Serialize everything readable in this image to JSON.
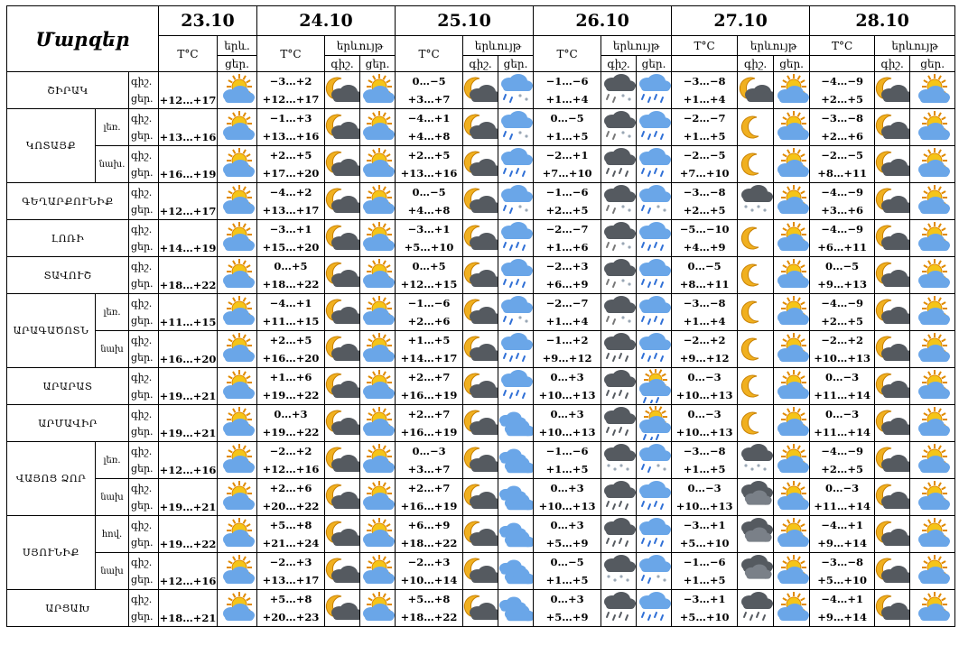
{
  "title": "Մարզեր",
  "dates": [
    "23.10",
    "24.10",
    "25.10",
    "26.10",
    "27.10",
    "28.10"
  ],
  "headers": {
    "temp": "T°C",
    "phen": "երևույթ",
    "phen_short": "երև.",
    "night": "գիշ.",
    "day": "ցեր."
  },
  "rows": [
    {
      "region": "ՇԻՐԱԿ",
      "sub": "",
      "tod": [
        "գիշ.",
        "ցեր."
      ],
      "d1_temp": "+12…+17",
      "d1_icon": "sun-cloud",
      "days": [
        {
          "night_temp": "−3…+2",
          "day_temp": "+12…+17",
          "night_icon": "moon-cloud",
          "day_icon": "sun-cloud"
        },
        {
          "night_temp": "0…−5",
          "day_temp": "+3…+7",
          "night_icon": "moon-cloud",
          "day_icon": "cloud-sleet"
        },
        {
          "night_temp": "−1…−6",
          "day_temp": "+1…+4",
          "night_icon": "dark-cloud-sleet",
          "day_icon": "cloud-rain"
        },
        {
          "night_temp": "−3…−8",
          "day_temp": "+1…+4",
          "night_icon": "moon-cloud",
          "day_icon": "sun-cloud"
        },
        {
          "night_temp": "−4…−9",
          "day_temp": "+2…+5",
          "night_icon": "moon-cloud",
          "day_icon": "sun-cloud"
        }
      ]
    },
    {
      "region": "ԿՈՏԱՅՔ",
      "sub": "լեռ.",
      "tod": [
        "գիշ.",
        "ցեր."
      ],
      "d1_temp": "+13…+16",
      "d1_icon": "sun-cloud",
      "days": [
        {
          "night_temp": "−1…+3",
          "day_temp": "+13…+16",
          "night_icon": "moon-cloud",
          "day_icon": "sun-cloud"
        },
        {
          "night_temp": "−4…+1",
          "day_temp": "+4…+8",
          "night_icon": "moon-cloud",
          "day_icon": "cloud-sleet"
        },
        {
          "night_temp": "0…−5",
          "day_temp": "+1…+5",
          "night_icon": "dark-cloud-sleet",
          "day_icon": "cloud-rain"
        },
        {
          "night_temp": "−2…−7",
          "day_temp": "+1…+5",
          "night_icon": "moon",
          "day_icon": "sun-cloud"
        },
        {
          "night_temp": "−3…−8",
          "day_temp": "+2…+6",
          "night_icon": "moon-cloud",
          "day_icon": "sun-cloud"
        }
      ]
    },
    {
      "region": "",
      "sub": "նախ.",
      "tod": [
        "գիշ.",
        "ցեր."
      ],
      "d1_temp": "+16…+19",
      "d1_icon": "sun-cloud",
      "days": [
        {
          "night_temp": "+2…+5",
          "day_temp": "+17…+20",
          "night_icon": "moon-cloud",
          "day_icon": "sun-cloud"
        },
        {
          "night_temp": "+2…+5",
          "day_temp": "+13…+16",
          "night_icon": "moon-cloud",
          "day_icon": "cloud-rain"
        },
        {
          "night_temp": "−2…+1",
          "day_temp": "+7…+10",
          "night_icon": "dark-cloud-rain",
          "day_icon": "cloud-rain"
        },
        {
          "night_temp": "−2…−5",
          "day_temp": "+7…+10",
          "night_icon": "moon",
          "day_icon": "sun-cloud"
        },
        {
          "night_temp": "−2…−5",
          "day_temp": "+8…+11",
          "night_icon": "moon-cloud",
          "day_icon": "sun-cloud"
        }
      ]
    },
    {
      "region": "ԳԵՂԱՐՔՈՒՆԻՔ",
      "sub": "",
      "tod": [
        "գիշ.",
        "ցեր."
      ],
      "d1_temp": "+12…+17",
      "d1_icon": "sun-cloud",
      "days": [
        {
          "night_temp": "−4…+2",
          "day_temp": "+13…+17",
          "night_icon": "moon-cloud",
          "day_icon": "sun-cloud"
        },
        {
          "night_temp": "0…−5",
          "day_temp": "+4…+8",
          "night_icon": "moon-cloud",
          "day_icon": "cloud-sleet"
        },
        {
          "night_temp": "−1…−6",
          "day_temp": "+2…+5",
          "night_icon": "dark-cloud-sleet",
          "day_icon": "cloud-sleet"
        },
        {
          "night_temp": "−3…−8",
          "day_temp": "+2…+5",
          "night_icon": "cloud-snow",
          "day_icon": "sun-cloud"
        },
        {
          "night_temp": "−4…−9",
          "day_temp": "+3…+6",
          "night_icon": "moon-cloud",
          "day_icon": "sun-cloud"
        }
      ]
    },
    {
      "region": "ԼՈՌԻ",
      "sub": "",
      "tod": [
        "գիշ.",
        "ցեր."
      ],
      "d1_temp": "+14…+19",
      "d1_icon": "sun-cloud",
      "days": [
        {
          "night_temp": "−3…+1",
          "day_temp": "+15…+20",
          "night_icon": "moon-cloud",
          "day_icon": "sun-cloud"
        },
        {
          "night_temp": "−3…+1",
          "day_temp": "+5…+10",
          "night_icon": "moon-cloud",
          "day_icon": "cloud-rain"
        },
        {
          "night_temp": "−2…−7",
          "day_temp": "+1…+6",
          "night_icon": "dark-cloud-sleet",
          "day_icon": "cloud-rain"
        },
        {
          "night_temp": "−5…−10",
          "day_temp": "+4…+9",
          "night_icon": "moon",
          "day_icon": "sun-cloud"
        },
        {
          "night_temp": "−4…−9",
          "day_temp": "+6…+11",
          "night_icon": "moon-cloud",
          "day_icon": "sun-cloud"
        }
      ]
    },
    {
      "region": "ՏԱՎՈՒՇ",
      "sub": "",
      "tod": [
        "գիշ.",
        "ցեր."
      ],
      "d1_temp": "+18…+22",
      "d1_icon": "sun-cloud",
      "days": [
        {
          "night_temp": "0…+5",
          "day_temp": "+18…+22",
          "night_icon": "moon-cloud",
          "day_icon": "sun-cloud"
        },
        {
          "night_temp": "0…+5",
          "day_temp": "+12…+15",
          "night_icon": "moon-cloud",
          "day_icon": "cloud-rain"
        },
        {
          "night_temp": "−2…+3",
          "day_temp": "+6…+9",
          "night_icon": "dark-cloud-sleet",
          "day_icon": "cloud-rain"
        },
        {
          "night_temp": "0…−5",
          "day_temp": "+8…+11",
          "night_icon": "moon",
          "day_icon": "sun-cloud"
        },
        {
          "night_temp": "0…−5",
          "day_temp": "+9…+13",
          "night_icon": "moon-cloud",
          "day_icon": "sun-cloud"
        }
      ]
    },
    {
      "region": "ԱՐԱԳԱԾՈՏՆ",
      "sub": "լեռ.",
      "tod": [
        "գիշ.",
        "ցեր."
      ],
      "d1_temp": "+11…+15",
      "d1_icon": "sun-cloud",
      "days": [
        {
          "night_temp": "−4…+1",
          "day_temp": "+11…+15",
          "night_icon": "moon-cloud",
          "day_icon": "sun-cloud"
        },
        {
          "night_temp": "−1…−6",
          "day_temp": "+2…+6",
          "night_icon": "moon-cloud",
          "day_icon": "cloud-sleet"
        },
        {
          "night_temp": "−2…−7",
          "day_temp": "+1…+4",
          "night_icon": "dark-cloud-sleet",
          "day_icon": "cloud-rain"
        },
        {
          "night_temp": "−3…−8",
          "day_temp": "+1…+4",
          "night_icon": "moon",
          "day_icon": "sun-cloud"
        },
        {
          "night_temp": "−4…−9",
          "day_temp": "+2…+5",
          "night_icon": "moon-cloud",
          "day_icon": "sun-cloud"
        }
      ]
    },
    {
      "region": "",
      "sub": "նախ",
      "tod": [
        "գիշ.",
        "ցեր."
      ],
      "d1_temp": "+16…+20",
      "d1_icon": "sun-cloud",
      "days": [
        {
          "night_temp": "+2…+5",
          "day_temp": "+16…+20",
          "night_icon": "moon-cloud",
          "day_icon": "sun-cloud"
        },
        {
          "night_temp": "+1…+5",
          "day_temp": "+14…+17",
          "night_icon": "moon-cloud",
          "day_icon": "cloud-rain"
        },
        {
          "night_temp": "−1…+2",
          "day_temp": "+9…+12",
          "night_icon": "dark-cloud-rain",
          "day_icon": "cloud-rain"
        },
        {
          "night_temp": "−2…+2",
          "day_temp": "+9…+12",
          "night_icon": "moon",
          "day_icon": "sun-cloud"
        },
        {
          "night_temp": "−2…+2",
          "day_temp": "+10…+13",
          "night_icon": "moon-cloud",
          "day_icon": "sun-cloud"
        }
      ]
    },
    {
      "region": "ԱՐԱՐԱՏ",
      "sub": "",
      "tod": [
        "գիշ.",
        "ցեր."
      ],
      "d1_temp": "+19…+21",
      "d1_icon": "sun-cloud",
      "days": [
        {
          "night_temp": "+1…+6",
          "day_temp": "+19…+22",
          "night_icon": "moon-cloud",
          "day_icon": "sun-cloud"
        },
        {
          "night_temp": "+2…+7",
          "day_temp": "+16…+19",
          "night_icon": "moon-cloud",
          "day_icon": "cloud-rain"
        },
        {
          "night_temp": "0…+3",
          "day_temp": "+10…+13",
          "night_icon": "dark-cloud-rain",
          "day_icon": "sun-cloud-rain"
        },
        {
          "night_temp": "0…−3",
          "day_temp": "+10…+13",
          "night_icon": "moon",
          "day_icon": "sun-cloud"
        },
        {
          "night_temp": "0…−3",
          "day_temp": "+11…+14",
          "night_icon": "moon-cloud",
          "day_icon": "sun-cloud"
        }
      ]
    },
    {
      "region": "ԱՐՄԱՎԻՐ",
      "sub": "",
      "tod": [
        "գիշ.",
        "ցեր."
      ],
      "d1_temp": "+19…+21",
      "d1_icon": "sun-cloud",
      "days": [
        {
          "night_temp": "0…+3",
          "day_temp": "+19…+22",
          "night_icon": "moon-cloud",
          "day_icon": "sun-cloud"
        },
        {
          "night_temp": "+2…+7",
          "day_temp": "+16…+19",
          "night_icon": "moon-cloud",
          "day_icon": "clouds"
        },
        {
          "night_temp": "0…+3",
          "day_temp": "+10…+13",
          "night_icon": "dark-cloud-rain",
          "day_icon": "sun-cloud-rain"
        },
        {
          "night_temp": "0…−3",
          "day_temp": "+10…+13",
          "night_icon": "moon",
          "day_icon": "sun-cloud"
        },
        {
          "night_temp": "0…−3",
          "day_temp": "+11…+14",
          "night_icon": "moon-cloud",
          "day_icon": "sun-cloud"
        }
      ]
    },
    {
      "region": "ՎԱՅՈՑ ՁՈՐ",
      "sub": "լեռ.",
      "tod": [
        "գիշ.",
        "ցեր."
      ],
      "d1_temp": "+12…+16",
      "d1_icon": "sun-cloud",
      "days": [
        {
          "night_temp": "−2…+2",
          "day_temp": "+12…+16",
          "night_icon": "moon-cloud",
          "day_icon": "sun-cloud"
        },
        {
          "night_temp": "0…−3",
          "day_temp": "+3…+7",
          "night_icon": "moon-cloud",
          "day_icon": "clouds"
        },
        {
          "night_temp": "−1…−6",
          "day_temp": "+1…+5",
          "night_icon": "cloud-snow",
          "day_icon": "cloud-sleet"
        },
        {
          "night_temp": "−3…−8",
          "day_temp": "+1…+5",
          "night_icon": "cloud-snow",
          "day_icon": "sun-cloud"
        },
        {
          "night_temp": "−4…−9",
          "day_temp": "+2…+5",
          "night_icon": "moon-cloud",
          "day_icon": "sun-cloud"
        }
      ]
    },
    {
      "region": "",
      "sub": "նախ",
      "tod": [
        "գիշ.",
        "ցեր."
      ],
      "d1_temp": "+19…+21",
      "d1_icon": "sun-cloud",
      "days": [
        {
          "night_temp": "+2…+6",
          "day_temp": "+20…+22",
          "night_icon": "moon-cloud",
          "day_icon": "sun-cloud"
        },
        {
          "night_temp": "+2…+7",
          "day_temp": "+16…+19",
          "night_icon": "moon-cloud",
          "day_icon": "clouds"
        },
        {
          "night_temp": "0…+3",
          "day_temp": "+10…+13",
          "night_icon": "dark-cloud-rain",
          "day_icon": "cloud-rain"
        },
        {
          "night_temp": "0…−3",
          "day_temp": "+10…+13",
          "night_icon": "dark-cloud",
          "day_icon": "sun-cloud"
        },
        {
          "night_temp": "0…−3",
          "day_temp": "+11…+14",
          "night_icon": "moon-cloud",
          "day_icon": "sun-cloud"
        }
      ]
    },
    {
      "region": "ՍՅՈՒՆԻՔ",
      "sub": "հով.",
      "tod": [
        "գիշ.",
        "ցեր."
      ],
      "d1_temp": "+19…+22",
      "d1_icon": "sun-cloud",
      "days": [
        {
          "night_temp": "+5…+8",
          "day_temp": "+21…+24",
          "night_icon": "moon-cloud",
          "day_icon": "sun-cloud"
        },
        {
          "night_temp": "+6…+9",
          "day_temp": "+18…+22",
          "night_icon": "moon-cloud",
          "day_icon": "clouds"
        },
        {
          "night_temp": "0…+3",
          "day_temp": "+5…+9",
          "night_icon": "dark-cloud-rain",
          "day_icon": "cloud-rain"
        },
        {
          "night_temp": "−3…+1",
          "day_temp": "+5…+10",
          "night_icon": "dark-cloud",
          "day_icon": "sun-cloud"
        },
        {
          "night_temp": "−4…+1",
          "day_temp": "+9…+14",
          "night_icon": "moon-cloud",
          "day_icon": "sun-cloud"
        }
      ]
    },
    {
      "region": "",
      "sub": "նախ",
      "tod": [
        "գիշ.",
        "ցեր."
      ],
      "d1_temp": "+12…+16",
      "d1_icon": "sun-cloud",
      "days": [
        {
          "night_temp": "−2…+3",
          "day_temp": "+13…+17",
          "night_icon": "moon-cloud",
          "day_icon": "sun-cloud"
        },
        {
          "night_temp": "−2…+3",
          "day_temp": "+10…+14",
          "night_icon": "moon-cloud",
          "day_icon": "clouds"
        },
        {
          "night_temp": "0…−5",
          "day_temp": "+1…+5",
          "night_icon": "cloud-snow",
          "day_icon": "cloud-sleet"
        },
        {
          "night_temp": "−1…−6",
          "day_temp": "+1…+5",
          "night_icon": "dark-cloud",
          "day_icon": "sun-cloud"
        },
        {
          "night_temp": "−3…−8",
          "day_temp": "+5…+10",
          "night_icon": "moon-cloud",
          "day_icon": "sun-cloud"
        }
      ]
    },
    {
      "region": "ԱՐՑԱԽ",
      "sub": "",
      "tod": [
        "գիշ.",
        "ցեր."
      ],
      "d1_temp": "+18…+21",
      "d1_icon": "sun-cloud",
      "days": [
        {
          "night_temp": "+5…+8",
          "day_temp": "+20…+23",
          "night_icon": "moon-cloud",
          "day_icon": "sun-cloud"
        },
        {
          "night_temp": "+5…+8",
          "day_temp": "+18…+22",
          "night_icon": "moon-cloud",
          "day_icon": "clouds"
        },
        {
          "night_temp": "0…+3",
          "day_temp": "+5…+9",
          "night_icon": "dark-cloud-rain",
          "day_icon": "cloud-rain"
        },
        {
          "night_temp": "−3…+1",
          "day_temp": "+5…+10",
          "night_icon": "dark-cloud-rain",
          "day_icon": "sun-cloud"
        },
        {
          "night_temp": "−4…+1",
          "day_temp": "+9…+14",
          "night_icon": "moon-cloud",
          "day_icon": "sun-cloud"
        }
      ]
    }
  ],
  "colors": {
    "sun": "#f5c518",
    "sun_edge": "#e08a00",
    "cloud": "#6aa6e8",
    "cloud_dark": "#555a60",
    "rain": "#2f6fd6",
    "moon": "#f0b020"
  }
}
